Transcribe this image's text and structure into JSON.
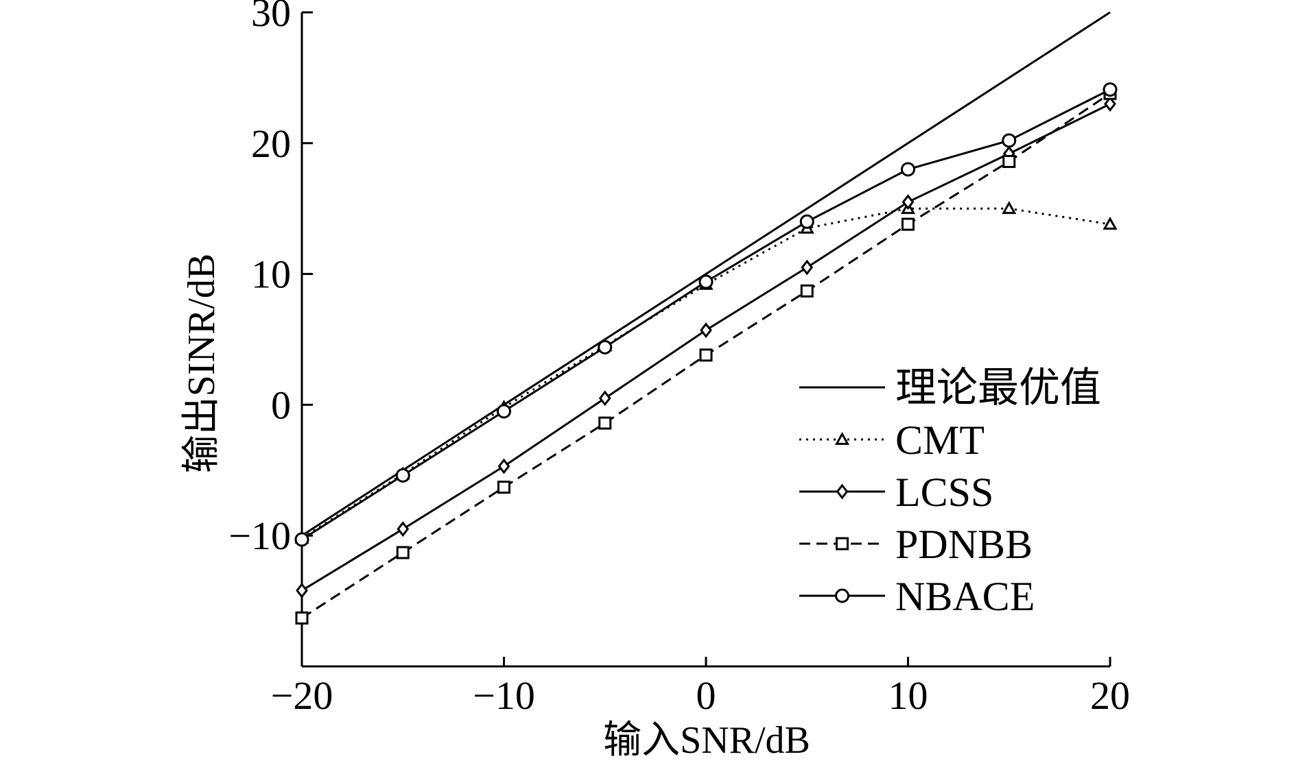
{
  "chart_data": {
    "type": "line",
    "xlabel": "输入SNR/dB",
    "ylabel": "输出SINR/dB",
    "xlim": [
      -20,
      20
    ],
    "ylim": [
      -20,
      30
    ],
    "xticks": [
      -20,
      -10,
      0,
      10,
      20
    ],
    "yticks": [
      -10,
      0,
      10,
      20,
      30
    ],
    "xtick_labels": [
      "−20",
      "−10",
      "0",
      "10",
      "20"
    ],
    "ytick_labels": [
      "−10",
      "0",
      "10",
      "20",
      "30"
    ],
    "legend_position": "lower-right",
    "grid": false,
    "x": [
      -20,
      -15,
      -10,
      -5,
      0,
      5,
      10,
      15,
      20
    ],
    "series": [
      {
        "name": "理论最优值",
        "style": "solid",
        "marker": "none",
        "values": [
          -10,
          -5,
          0,
          5,
          10,
          15,
          20,
          25,
          30
        ]
      },
      {
        "name": "CMT",
        "style": "dotted",
        "marker": "triangle",
        "values": [
          -10.2,
          -5.3,
          -0.2,
          4.5,
          9.2,
          13.5,
          15.0,
          15.0,
          13.8
        ]
      },
      {
        "name": "LCSS",
        "style": "solid",
        "marker": "diamond",
        "values": [
          -14.2,
          -9.5,
          -4.7,
          0.5,
          5.7,
          10.5,
          15.5,
          19.2,
          23.0
        ]
      },
      {
        "name": "PDNBB",
        "style": "dashed",
        "marker": "square",
        "values": [
          -16.3,
          -11.3,
          -6.3,
          -1.4,
          3.8,
          8.7,
          13.8,
          18.6,
          23.8
        ]
      },
      {
        "name": "NBACE",
        "style": "solid",
        "marker": "circle",
        "values": [
          -10.3,
          -5.4,
          -0.5,
          4.4,
          9.4,
          14.0,
          18.0,
          20.2,
          24.1
        ]
      }
    ]
  }
}
